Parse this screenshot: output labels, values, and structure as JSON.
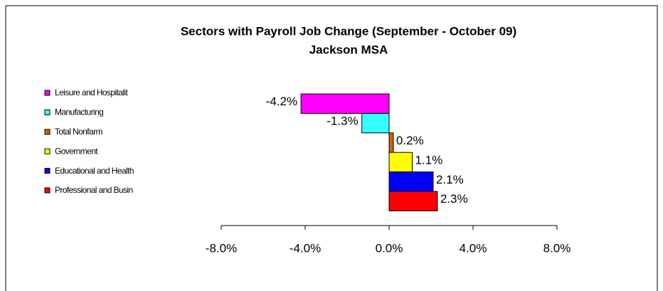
{
  "chart_data": {
    "type": "hbar",
    "title": "Sectors with Payroll Job Change (September - October 09)",
    "subtitle": "Jackson MSA",
    "categories": [
      "Leisure and Hospitalit",
      "Manufacturing",
      "Total Nonfarm",
      "Government",
      "Educational and Health",
      "Professional and Busin"
    ],
    "values": [
      -4.2,
      -1.3,
      0.2,
      1.1,
      2.1,
      2.3
    ],
    "value_labels": [
      "-4.2%",
      "-1.3%",
      "0.2%",
      "1.1%",
      "2.1%",
      "2.3%"
    ],
    "colors": [
      "#ff00ff",
      "#33ffff",
      "#cc6600",
      "#ffff00",
      "#0000ff",
      "#ff0000"
    ],
    "xlim": [
      -8,
      8
    ],
    "xticks": [
      {
        "value": -8,
        "label": "-8.0%"
      },
      {
        "value": -4,
        "label": "-4.0%"
      },
      {
        "value": 0,
        "label": "0.0%"
      },
      {
        "value": 4,
        "label": "4.0%"
      },
      {
        "value": 8,
        "label": "8.0%"
      }
    ],
    "legend": "left"
  }
}
